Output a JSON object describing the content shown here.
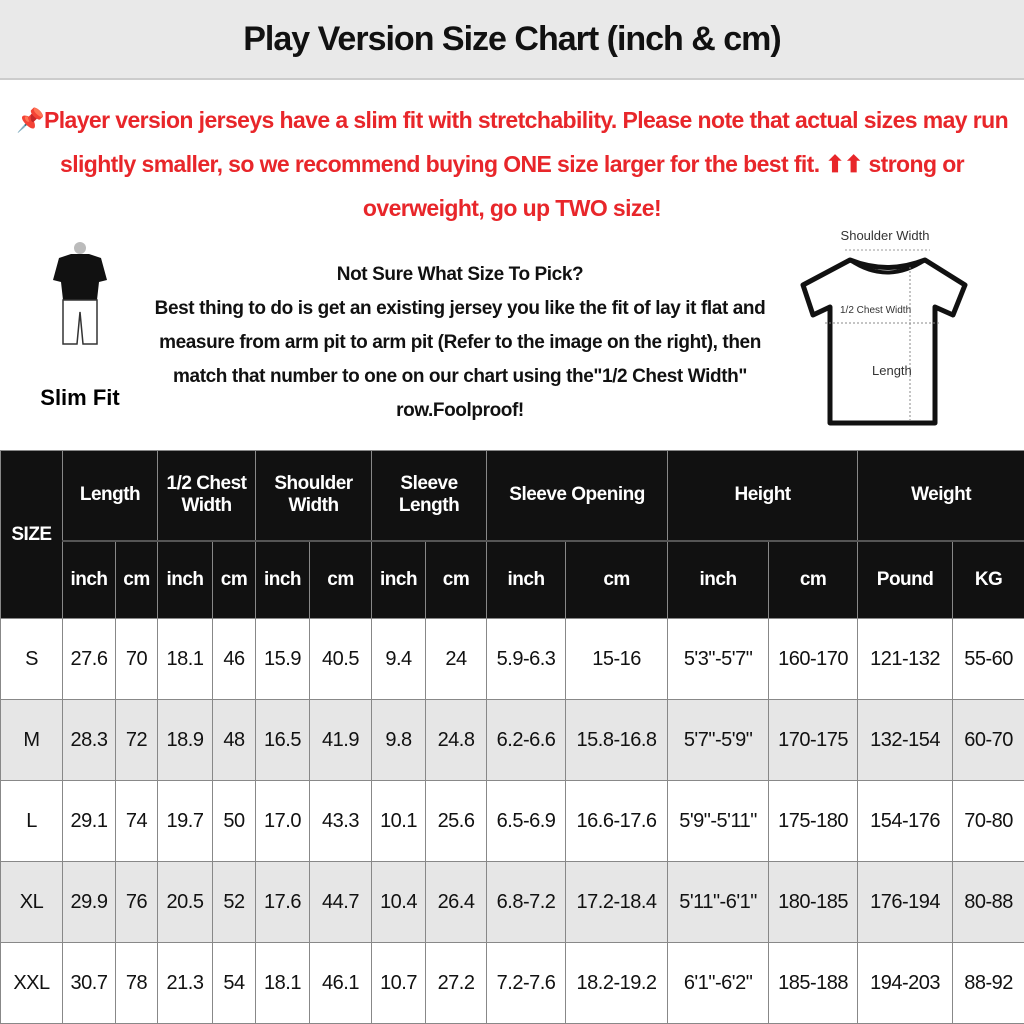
{
  "title": "Play Version Size Chart (inch & cm)",
  "notice": {
    "icon": "pushpin-icon",
    "text": "Player version jerseys have a slim fit with stretchability. Please note that actual sizes may run slightly smaller, so we recommend buying ONE size larger for the best fit. ⬆⬆ strong or overweight, go up TWO size!",
    "color": "#e8262a"
  },
  "info": {
    "heading": "Not Sure What Size To Pick?",
    "body": "Best thing to do is get an existing jersey you like the fit of lay it flat and measure from arm pit to arm pit (Refer to the image on the right), then match that number to one on our chart using the\"1/2 Chest Width\" row.Foolproof!"
  },
  "slim_fit_label": "Slim Fit",
  "diagram": {
    "shoulder": "Shoulder Width",
    "chest": "1/2 Chest Width",
    "length": "Length"
  },
  "table": {
    "size_header": "SIZE",
    "groups": [
      {
        "label": "Length",
        "units": [
          "inch",
          "cm"
        ]
      },
      {
        "label": "1/2 Chest Width",
        "units": [
          "inch",
          "cm"
        ]
      },
      {
        "label": "Shoulder Width",
        "units": [
          "inch",
          "cm"
        ]
      },
      {
        "label": "Sleeve Length",
        "units": [
          "inch",
          "cm"
        ]
      },
      {
        "label": "Sleeve Opening",
        "units": [
          "inch",
          "cm"
        ]
      },
      {
        "label": "Height",
        "units": [
          "inch",
          "cm"
        ]
      },
      {
        "label": "Weight",
        "units": [
          "Pound",
          "KG"
        ]
      }
    ],
    "rows": [
      [
        "S",
        "27.6",
        "70",
        "18.1",
        "46",
        "15.9",
        "40.5",
        "9.4",
        "24",
        "5.9-6.3",
        "15-16",
        "5'3\"-5'7\"",
        "160-170",
        "121-132",
        "55-60"
      ],
      [
        "M",
        "28.3",
        "72",
        "18.9",
        "48",
        "16.5",
        "41.9",
        "9.8",
        "24.8",
        "6.2-6.6",
        "15.8-16.8",
        "5'7\"-5'9\"",
        "170-175",
        "132-154",
        "60-70"
      ],
      [
        "L",
        "29.1",
        "74",
        "19.7",
        "50",
        "17.0",
        "43.3",
        "10.1",
        "25.6",
        "6.5-6.9",
        "16.6-17.6",
        "5'9\"-5'11\"",
        "175-180",
        "154-176",
        "70-80"
      ],
      [
        "XL",
        "29.9",
        "76",
        "20.5",
        "52",
        "17.6",
        "44.7",
        "10.4",
        "26.4",
        "6.8-7.2",
        "17.2-18.4",
        "5'11\"-6'1\"",
        "180-185",
        "176-194",
        "80-88"
      ],
      [
        "XXL",
        "30.7",
        "78",
        "21.3",
        "54",
        "18.1",
        "46.1",
        "10.7",
        "27.2",
        "7.2-7.6",
        "18.2-19.2",
        "6'1\"-6'2\"",
        "185-188",
        "194-203",
        "88-92"
      ]
    ]
  }
}
